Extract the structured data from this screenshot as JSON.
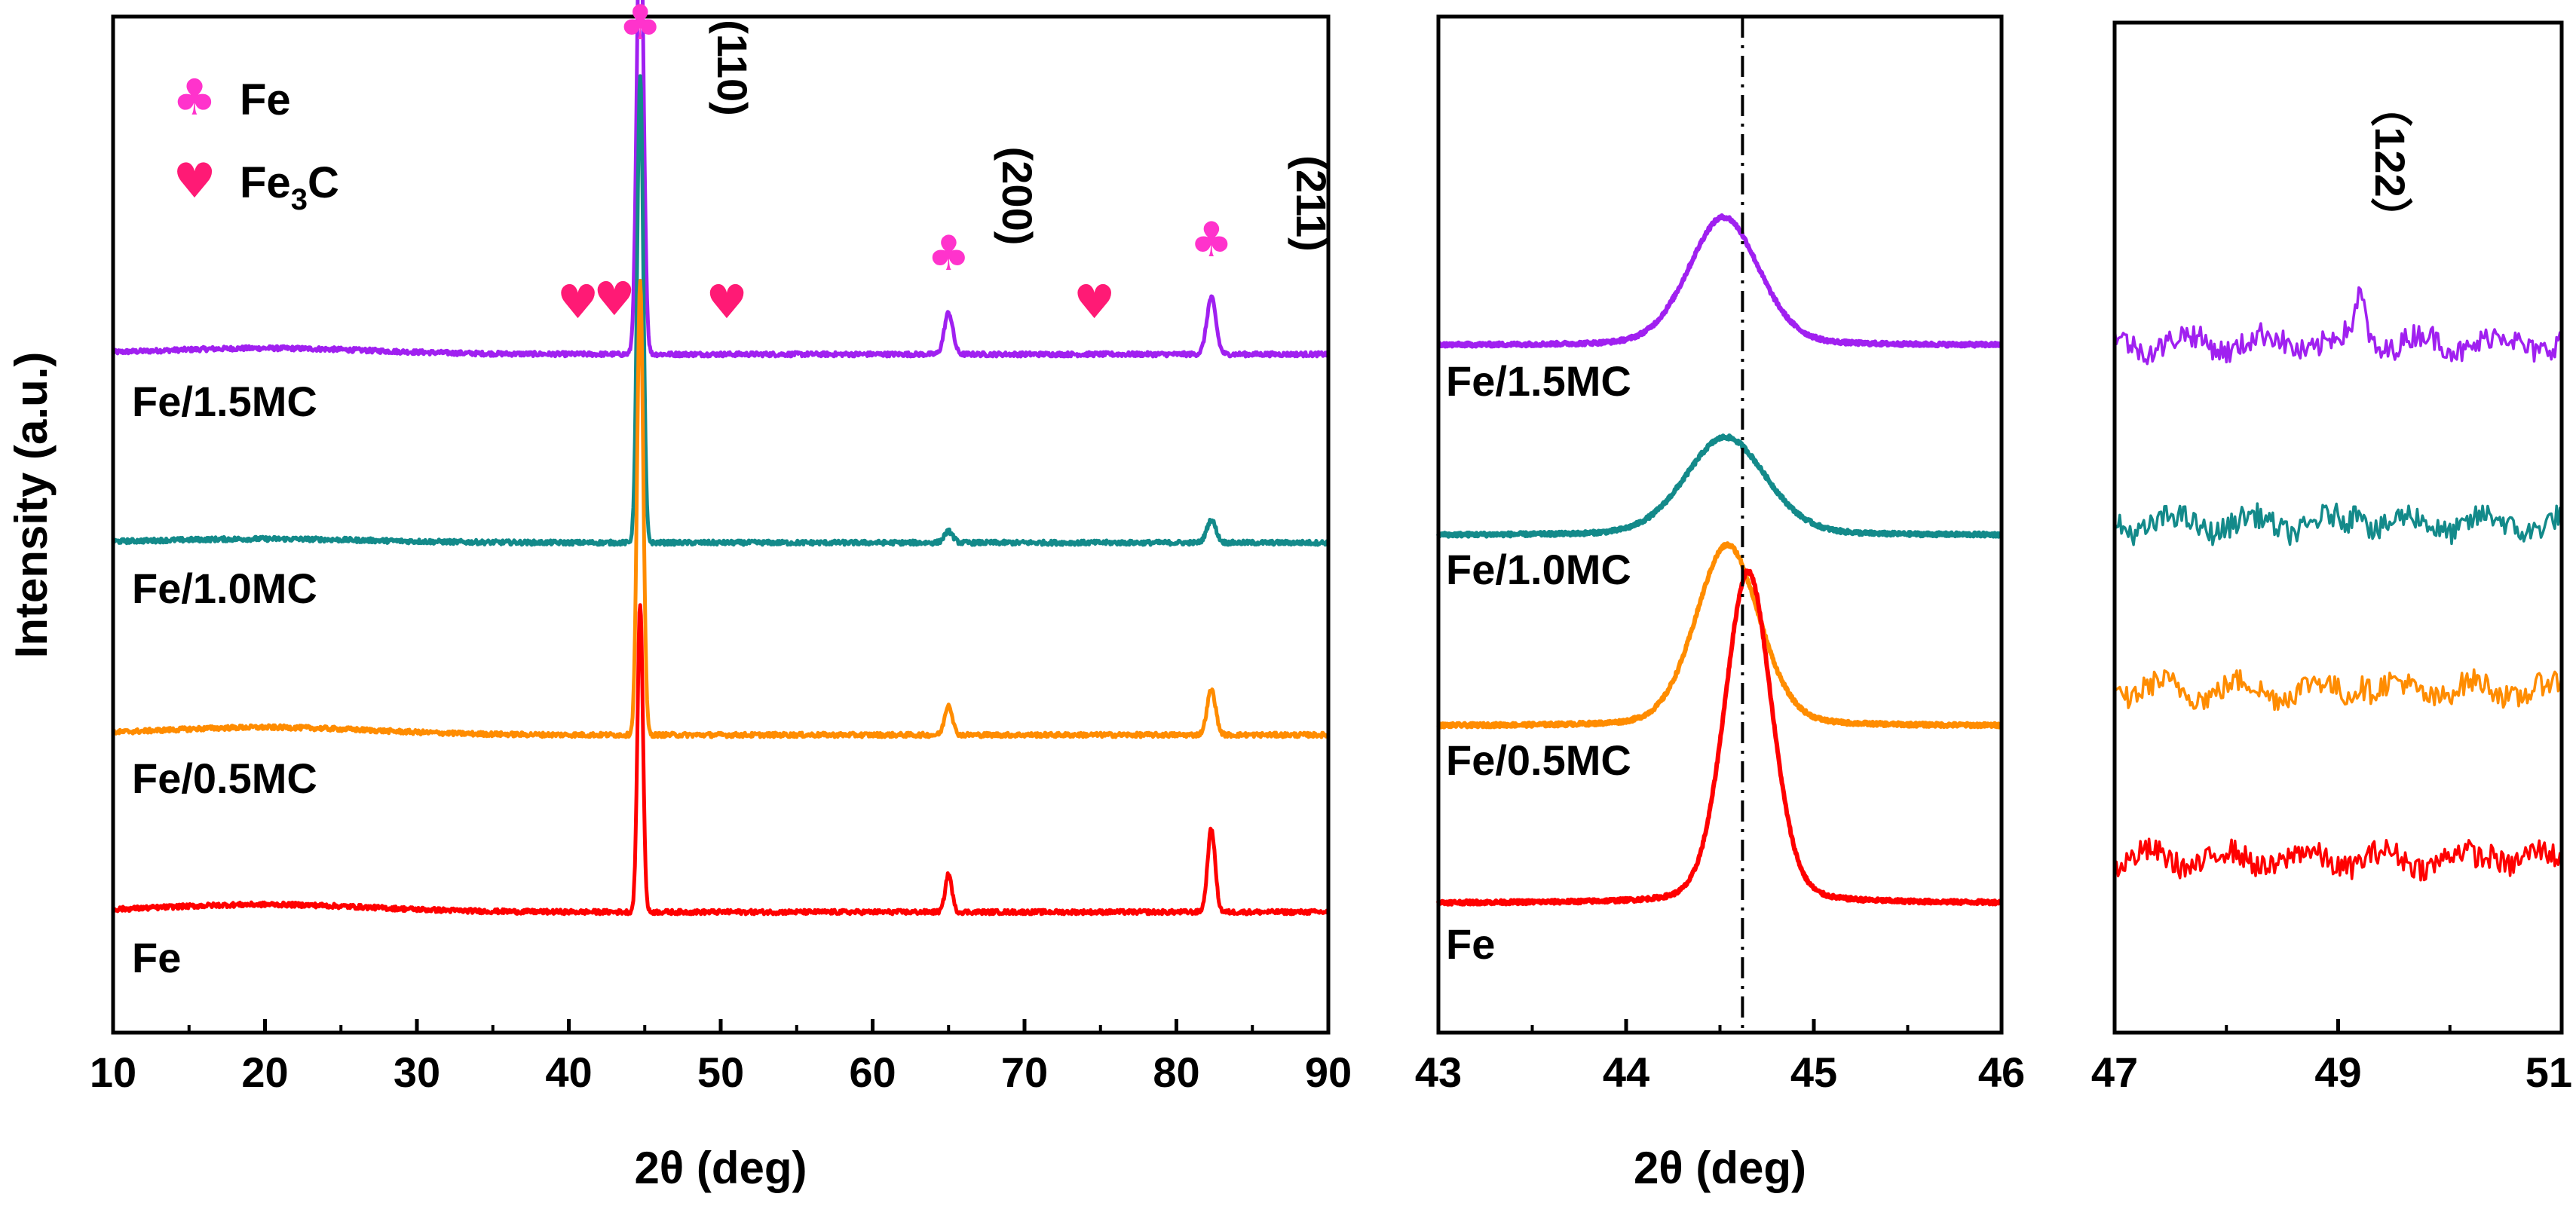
{
  "chart_data": [
    {
      "type": "line",
      "panel": "full-range",
      "xlabel": "2θ (deg)",
      "ylabel": "Intensity (a.u.)",
      "xlim": [
        10,
        90
      ],
      "xticks": [
        10,
        20,
        30,
        40,
        50,
        60,
        70,
        80,
        90
      ],
      "y_units": "arbitrary, stacked with vertical offsets",
      "legend": [
        {
          "symbol": "♣",
          "label": "Fe",
          "color": "#ff33cc"
        },
        {
          "symbol": "♥",
          "label": "Fe3C",
          "label_main": "Fe",
          "label_sub": "3",
          "label_tail": "C",
          "color": "#ff1a75"
        }
      ],
      "peak_labels": [
        {
          "text": "(110)",
          "x": 44.7
        },
        {
          "text": "(200)",
          "x": 65.0
        },
        {
          "text": "(211)",
          "x": 82.3
        }
      ],
      "fe_markers_x": [
        44.7,
        65.0,
        82.3
      ],
      "fe3c_markers_x": [
        40.6,
        43.0,
        50.4,
        74.6
      ],
      "series": [
        {
          "name": "Fe/1.5MC",
          "color": "#a020f0",
          "baseline": 0.92,
          "hump": 0.08,
          "peaks": [
            {
              "x": 44.7,
              "h": 6.2,
              "w": 0.22
            },
            {
              "x": 65.0,
              "h": 0.55,
              "w": 0.28
            },
            {
              "x": 82.3,
              "h": 0.75,
              "w": 0.3
            }
          ]
        },
        {
          "name": "Fe/1.0MC",
          "color": "#138a8a",
          "baseline": 0.0,
          "hump": 0.05,
          "peaks": [
            {
              "x": 44.7,
              "h": 6.2,
              "w": 0.2
            },
            {
              "x": 65.0,
              "h": 0.15,
              "w": 0.28
            },
            {
              "x": 82.3,
              "h": 0.3,
              "w": 0.3
            }
          ]
        },
        {
          "name": "Fe/0.5MC",
          "color": "#ff8c00",
          "baseline": 0.0,
          "hump": 0.1,
          "peaks": [
            {
              "x": 44.7,
              "h": 6.0,
              "w": 0.2
            },
            {
              "x": 65.0,
              "h": 0.4,
              "w": 0.25
            },
            {
              "x": 82.3,
              "h": 0.6,
              "w": 0.28
            }
          ]
        },
        {
          "name": "Fe",
          "color": "#ff0000",
          "baseline": 0.0,
          "hump": 0.1,
          "peaks": [
            {
              "x": 44.7,
              "h": 4.1,
              "w": 0.18
            },
            {
              "x": 65.0,
              "h": 0.5,
              "w": 0.22
            },
            {
              "x": 82.3,
              "h": 1.1,
              "w": 0.25
            }
          ]
        }
      ]
    },
    {
      "type": "line",
      "panel": "zoom-110",
      "xlabel": "2θ (deg)",
      "xlim": [
        43,
        46
      ],
      "xticks": [
        43,
        44,
        45,
        46
      ],
      "reference_line_x": 44.62,
      "series": [
        {
          "name": "Fe/1.5MC",
          "color": "#a020f0",
          "center": 44.52,
          "height": 1.7,
          "width": 0.21
        },
        {
          "name": "Fe/1.0MC",
          "color": "#138a8a",
          "center": 44.53,
          "height": 1.3,
          "width": 0.24
        },
        {
          "name": "Fe/0.5MC",
          "color": "#ff8c00",
          "center": 44.54,
          "height": 2.4,
          "width": 0.19
        },
        {
          "name": "Fe",
          "color": "#ff0000",
          "center": 44.65,
          "height": 4.4,
          "width": 0.14
        }
      ]
    },
    {
      "type": "line",
      "panel": "zoom-122",
      "xlim": [
        47,
        51
      ],
      "xticks": [
        47,
        49,
        51
      ],
      "peak_label": {
        "text": "（122）",
        "x": 49.2
      },
      "series": [
        {
          "name": "Fe/1.5MC",
          "color": "#a020f0",
          "peak_x": 49.2,
          "peak_h": 0.6
        },
        {
          "name": "Fe/1.0MC",
          "color": "#138a8a",
          "peak_x": 49.2,
          "peak_h": 0.3
        },
        {
          "name": "Fe/0.5MC",
          "color": "#ff8c00",
          "peak_x": 49.2,
          "peak_h": 0.15
        },
        {
          "name": "Fe",
          "color": "#ff0000",
          "peak_x": 50.4,
          "peak_h": 0.15
        }
      ]
    }
  ]
}
